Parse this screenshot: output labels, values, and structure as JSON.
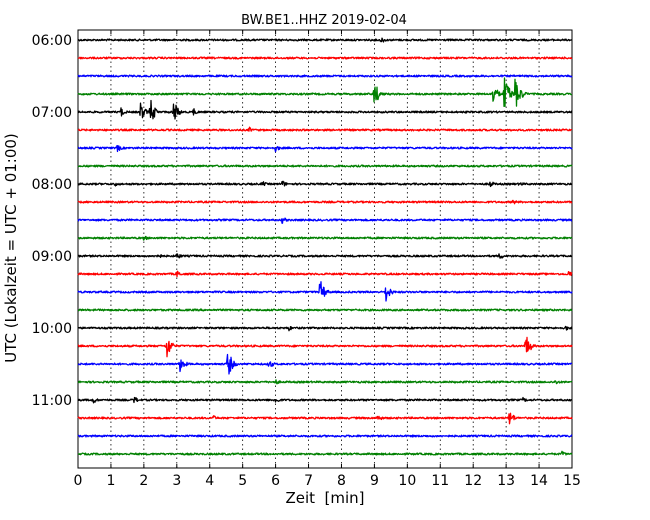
{
  "chart_data": {
    "type": "line",
    "title": "BW.BE1..HHZ 2019-02-04",
    "xlabel": "Zeit  [min]",
    "ylabel": "UTC (Lokalzeit = UTC + 01:00)",
    "xlim": [
      0,
      15
    ],
    "x_ticks": [
      "0",
      "1",
      "2",
      "3",
      "4",
      "5",
      "6",
      "7",
      "8",
      "9",
      "10",
      "11",
      "12",
      "13",
      "14",
      "15"
    ],
    "y_ticks": [
      {
        "label": "06:00",
        "row": 0
      },
      {
        "label": "07:00",
        "row": 4
      },
      {
        "label": "08:00",
        "row": 8
      },
      {
        "label": "09:00",
        "row": 12
      },
      {
        "label": "10:00",
        "row": 16
      },
      {
        "label": "11:00",
        "row": 20
      }
    ],
    "grid": "vertical dotted",
    "colors": [
      "#000000",
      "#ff0000",
      "#0000ff",
      "#008000"
    ],
    "series": [
      {
        "start": "06:00",
        "color": "#000000",
        "events": [
          {
            "t": 9.2,
            "a": 4
          }
        ]
      },
      {
        "start": "06:15",
        "color": "#ff0000",
        "events": []
      },
      {
        "start": "06:30",
        "color": "#0000ff",
        "events": []
      },
      {
        "start": "06:45",
        "color": "#008000",
        "events": [
          {
            "t": 9.0,
            "a": 14
          },
          {
            "t": 12.6,
            "a": 12
          },
          {
            "t": 12.95,
            "a": 22
          },
          {
            "t": 13.25,
            "a": 22
          },
          {
            "t": 13.45,
            "a": 6
          }
        ]
      },
      {
        "start": "07:00",
        "color": "#000000",
        "events": [
          {
            "t": 1.3,
            "a": 5
          },
          {
            "t": 1.9,
            "a": 10
          },
          {
            "t": 2.2,
            "a": 14
          },
          {
            "t": 2.9,
            "a": 13
          },
          {
            "t": 3.5,
            "a": 4
          }
        ]
      },
      {
        "start": "07:15",
        "color": "#ff0000",
        "events": [
          {
            "t": 5.2,
            "a": 3
          }
        ]
      },
      {
        "start": "07:30",
        "color": "#0000ff",
        "events": [
          {
            "t": 1.2,
            "a": 4
          },
          {
            "t": 6.0,
            "a": 4
          }
        ]
      },
      {
        "start": "07:45",
        "color": "#008000",
        "events": []
      },
      {
        "start": "08:00",
        "color": "#000000",
        "events": [
          {
            "t": 1.1,
            "a": 3
          },
          {
            "t": 5.6,
            "a": 3
          },
          {
            "t": 6.2,
            "a": 4
          },
          {
            "t": 12.5,
            "a": 4
          },
          {
            "t": 13.4,
            "a": 3
          }
        ]
      },
      {
        "start": "08:15",
        "color": "#ff0000",
        "events": [
          {
            "t": 13.2,
            "a": 3
          }
        ]
      },
      {
        "start": "08:30",
        "color": "#0000ff",
        "events": [
          {
            "t": 6.2,
            "a": 4
          }
        ]
      },
      {
        "start": "08:45",
        "color": "#008000",
        "events": [
          {
            "t": 2.0,
            "a": 3
          }
        ]
      },
      {
        "start": "09:00",
        "color": "#000000",
        "events": [
          {
            "t": 2.4,
            "a": 4
          },
          {
            "t": 3.0,
            "a": 4
          },
          {
            "t": 12.8,
            "a": 4
          }
        ]
      },
      {
        "start": "09:15",
        "color": "#ff0000",
        "events": [
          {
            "t": 3.0,
            "a": 4
          },
          {
            "t": 14.9,
            "a": 4
          }
        ]
      },
      {
        "start": "09:30",
        "color": "#0000ff",
        "events": [
          {
            "t": 7.35,
            "a": 14
          },
          {
            "t": 9.35,
            "a": 10
          }
        ]
      },
      {
        "start": "09:45",
        "color": "#008000",
        "events": []
      },
      {
        "start": "10:00",
        "color": "#000000",
        "events": [
          {
            "t": 6.4,
            "a": 3
          },
          {
            "t": 14.8,
            "a": 3
          }
        ]
      },
      {
        "start": "10:15",
        "color": "#ff0000",
        "events": [
          {
            "t": 2.7,
            "a": 13
          },
          {
            "t": 13.6,
            "a": 13
          }
        ]
      },
      {
        "start": "10:30",
        "color": "#0000ff",
        "events": [
          {
            "t": 3.1,
            "a": 9
          },
          {
            "t": 4.55,
            "a": 15
          },
          {
            "t": 5.8,
            "a": 5
          }
        ]
      },
      {
        "start": "10:45",
        "color": "#008000",
        "events": [
          {
            "t": 6.0,
            "a": 3
          },
          {
            "t": 14.5,
            "a": 3
          }
        ]
      },
      {
        "start": "11:00",
        "color": "#000000",
        "events": [
          {
            "t": 0.45,
            "a": 4
          },
          {
            "t": 1.7,
            "a": 4
          },
          {
            "t": 6.0,
            "a": 4
          },
          {
            "t": 13.5,
            "a": 3
          }
        ]
      },
      {
        "start": "11:15",
        "color": "#ff0000",
        "events": [
          {
            "t": 4.1,
            "a": 3
          },
          {
            "t": 9.1,
            "a": 4
          },
          {
            "t": 13.1,
            "a": 8
          }
        ]
      },
      {
        "start": "11:30",
        "color": "#0000ff",
        "events": []
      },
      {
        "start": "11:45",
        "color": "#008000",
        "events": [
          {
            "t": 14.7,
            "a": 3
          }
        ]
      }
    ]
  }
}
